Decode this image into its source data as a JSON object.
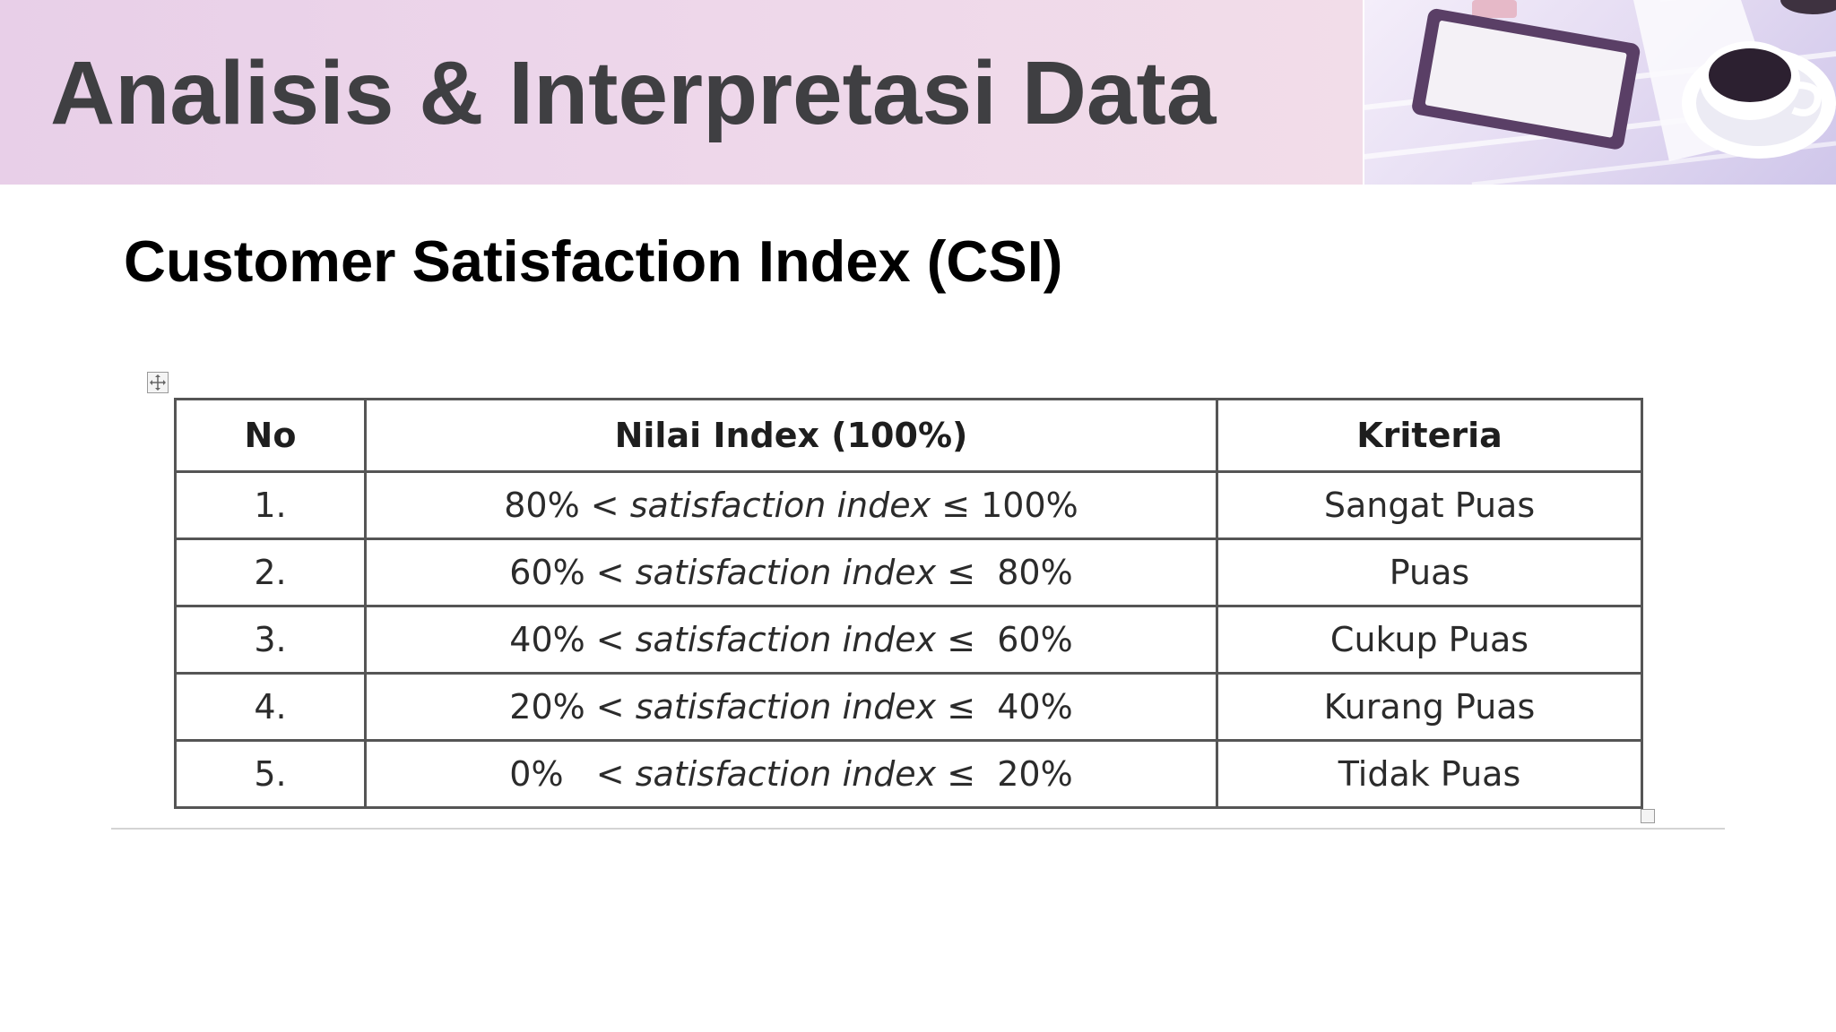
{
  "slide": {
    "title": "Analisis & Interpretasi Data",
    "subtitle": "Customer Satisfaction Index (CSI)",
    "photo_icon": "tablet-and-coffee-cup-photo",
    "header_color": "#ecd3ea",
    "title_color": "#3f3f42"
  },
  "table": {
    "headers": {
      "no": "No",
      "index": "Nilai Index (100%)",
      "criteria": "Kriteria"
    },
    "rows": [
      {
        "no": "1.",
        "lower": "80% <",
        "term": "satisfaction index",
        "upper": "≤ 100%",
        "criteria": "Sangat Puas"
      },
      {
        "no": "2.",
        "lower": "60% <",
        "term": "satisfaction index",
        "upper": "≤  80%",
        "criteria": "Puas"
      },
      {
        "no": "3.",
        "lower": "40% <",
        "term": "satisfaction index",
        "upper": "≤  60%",
        "criteria": "Cukup Puas"
      },
      {
        "no": "4.",
        "lower": "20% <",
        "term": "satisfaction index",
        "upper": "≤  40%",
        "criteria": "Kurang Puas"
      },
      {
        "no": "5.",
        "lower": "0%   <",
        "term": "satisfaction index",
        "upper": "≤  20%",
        "criteria": "Tidak Puas"
      }
    ]
  }
}
